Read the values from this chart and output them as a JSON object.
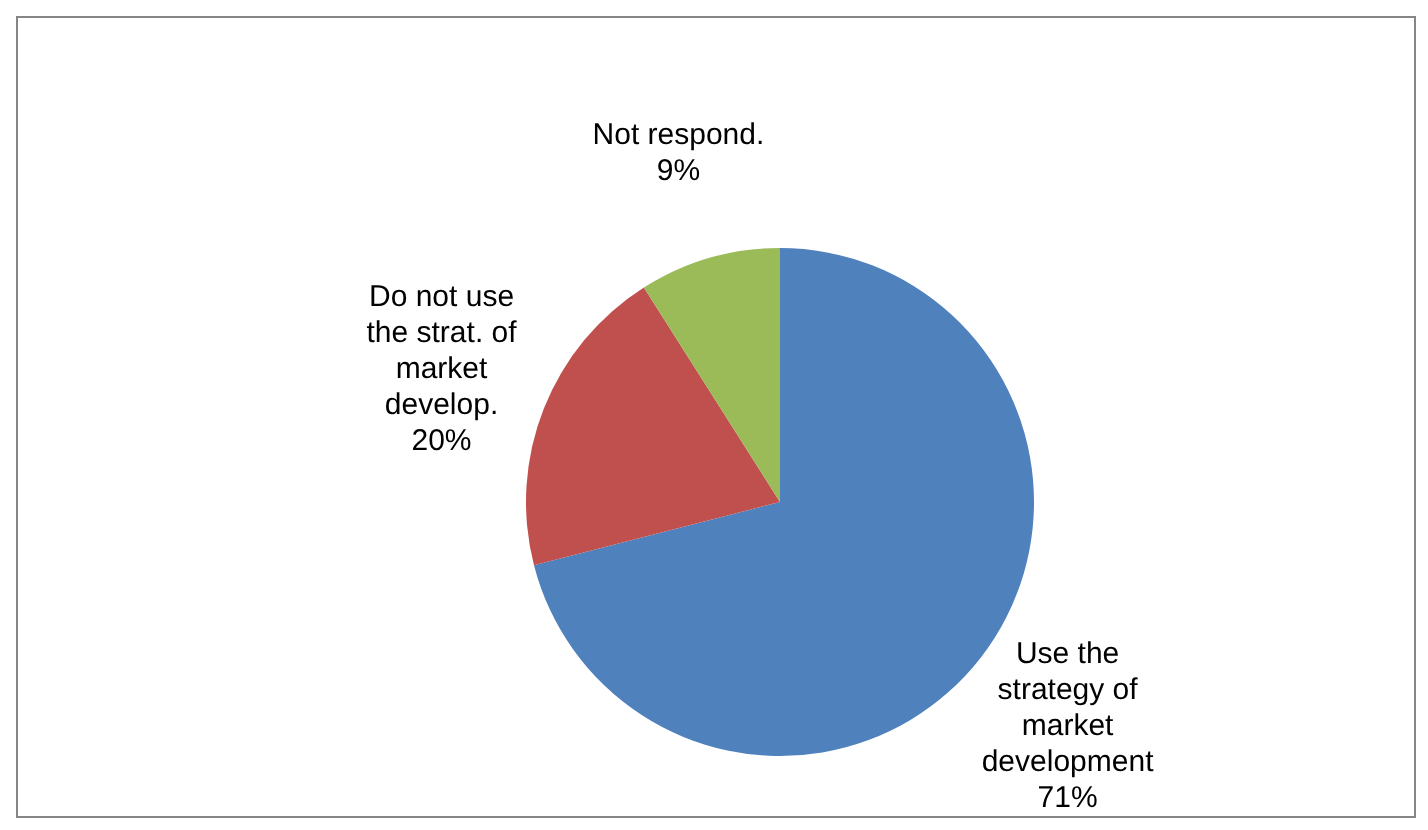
{
  "chart_data": {
    "type": "pie",
    "categories": [
      "Use the strategy of market development",
      "Do not use the strat. of market develop.",
      "Not respond."
    ],
    "values": [
      71,
      20,
      9
    ],
    "value_labels": [
      "71%",
      "20%",
      "9%"
    ],
    "colors": [
      "#4f81bd",
      "#c0504d",
      "#9bbb59"
    ],
    "legend": false
  }
}
